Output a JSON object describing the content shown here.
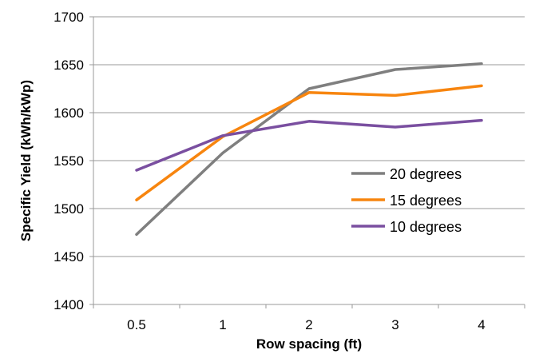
{
  "chart_data": {
    "type": "line",
    "title": "",
    "xlabel": "Row spacing (ft)",
    "ylabel": "Specific Yield (kWh/kWp)",
    "categories": [
      "0.5",
      "1",
      "2",
      "3",
      "4"
    ],
    "ylim": [
      1400,
      1700
    ],
    "yticks": [
      "1400",
      "1450",
      "1500",
      "1550",
      "1600",
      "1650",
      "1700"
    ],
    "grid": "horizontal",
    "legend_position": "right-center",
    "series": [
      {
        "name": "20 degrees",
        "color": "#7f7f7f",
        "values": [
          1473,
          1558,
          1625,
          1645,
          1651
        ]
      },
      {
        "name": "15 degrees",
        "color": "#f7850f",
        "values": [
          1509,
          1575,
          1621,
          1618,
          1628
        ]
      },
      {
        "name": "10 degrees",
        "color": "#7a4fa0",
        "values": [
          1540,
          1576,
          1591,
          1585,
          1592
        ]
      }
    ]
  }
}
